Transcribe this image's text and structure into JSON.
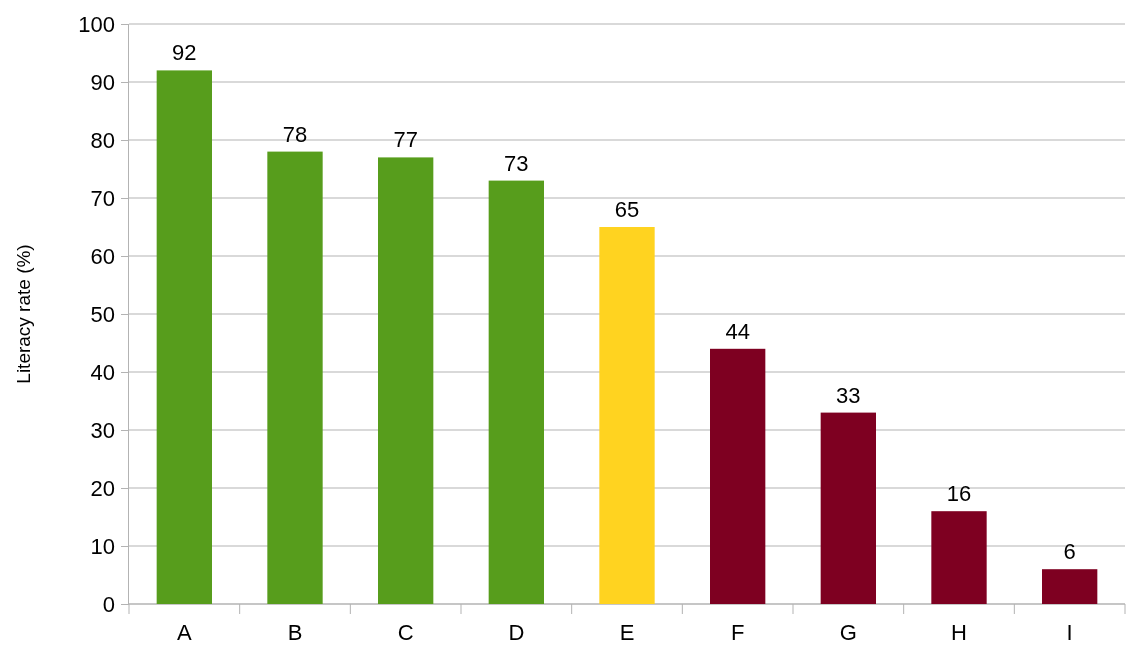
{
  "chart_data": {
    "type": "bar",
    "ylabel": "Literacy rate (%)",
    "categories": [
      "A",
      "B",
      "C",
      "D",
      "E",
      "F",
      "G",
      "H",
      "I"
    ],
    "values": [
      92,
      78,
      77,
      73,
      65,
      44,
      33,
      16,
      6
    ],
    "colors": [
      "#579d1c",
      "#579d1c",
      "#579d1c",
      "#579d1c",
      "#ffd320",
      "#7e0021",
      "#7e0021",
      "#7e0021",
      "#7e0021"
    ],
    "ylim": [
      0,
      100
    ],
    "yticks": [
      0,
      10,
      20,
      30,
      40,
      50,
      60,
      70,
      80,
      90,
      100
    ],
    "grid": "y",
    "data_labels": true
  }
}
